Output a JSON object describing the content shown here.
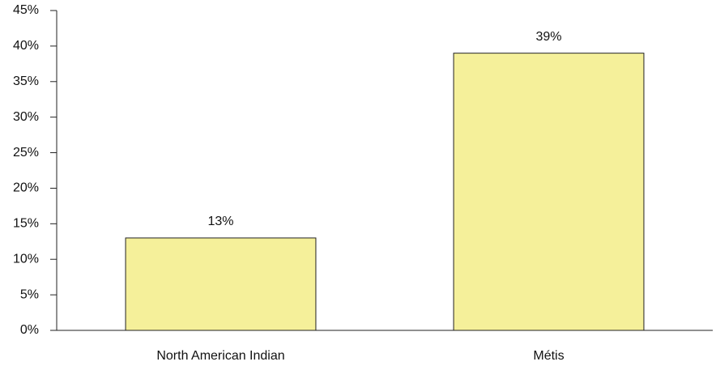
{
  "chart_data": {
    "type": "bar",
    "categories": [
      "North American Indian",
      "Métis"
    ],
    "values": [
      13,
      39
    ],
    "value_labels": [
      "13%",
      "39%"
    ],
    "color": "#f5f09a",
    "ylim": [
      0,
      45
    ],
    "yticks": [
      {
        "value": 0,
        "label": "0%"
      },
      {
        "value": 5,
        "label": "5%"
      },
      {
        "value": 10,
        "label": "10%"
      },
      {
        "value": 15,
        "label": "15%"
      },
      {
        "value": 20,
        "label": "20%"
      },
      {
        "value": 25,
        "label": "25%"
      },
      {
        "value": 30,
        "label": "30%"
      },
      {
        "value": 35,
        "label": "35%"
      },
      {
        "value": 40,
        "label": "40%"
      },
      {
        "value": 45,
        "label": "45%"
      }
    ],
    "grid": false
  }
}
